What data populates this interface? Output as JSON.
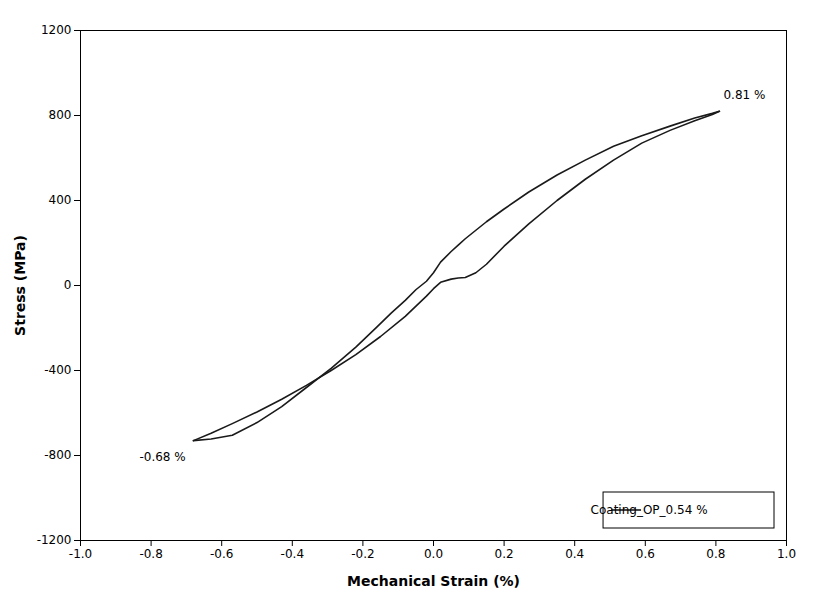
{
  "chart_data": {
    "type": "line",
    "xlabel": "Mechanical Strain (%)",
    "ylabel": "Stress (MPa)",
    "xlim": [
      -1.0,
      1.0
    ],
    "ylim": [
      -1200,
      1200
    ],
    "xticks": [
      {
        "value": -1.0,
        "label": "-1.0"
      },
      -0.8,
      -0.6,
      -0.4,
      -0.2,
      {
        "value": 0.0,
        "label": "0.0"
      },
      0.2,
      0.4,
      0.6,
      0.8,
      {
        "value": 1.0,
        "label": "1.0"
      }
    ],
    "yticks": [
      -1200,
      -800,
      -400,
      0,
      400,
      800,
      1200
    ],
    "grid": false,
    "legend": "lower right",
    "series": [
      {
        "name": "Coating_OP_0.54 %",
        "color": "#1a1a1a",
        "x": [
          -0.68,
          -0.63,
          -0.57,
          -0.5,
          -0.43,
          -0.36,
          -0.29,
          -0.22,
          -0.15,
          -0.08,
          -0.02,
          0.0,
          0.02,
          0.05,
          0.07,
          0.09,
          0.12,
          0.15,
          0.2,
          0.27,
          0.35,
          0.43,
          0.51,
          0.59,
          0.67,
          0.74,
          0.79,
          0.81
        ],
        "values": [
          -730,
          -695,
          -650,
          -595,
          -535,
          -470,
          -400,
          -325,
          -240,
          -145,
          -50,
          -15,
          15,
          30,
          35,
          38,
          60,
          100,
          185,
          290,
          400,
          500,
          590,
          670,
          730,
          775,
          805,
          820
        ]
      },
      {
        "color": "#1a1a1a",
        "x": [
          0.81,
          0.79,
          0.74,
          0.67,
          0.59,
          0.51,
          0.43,
          0.35,
          0.27,
          0.2,
          0.15,
          0.12,
          0.09,
          0.07,
          0.05,
          0.02,
          0.0,
          -0.02,
          -0.05,
          -0.08,
          -0.12,
          -0.16,
          -0.22,
          -0.29,
          -0.36,
          -0.43,
          -0.5,
          -0.57,
          -0.63,
          -0.68
        ],
        "values": [
          820,
          810,
          788,
          750,
          705,
          655,
          590,
          520,
          440,
          360,
          300,
          260,
          220,
          190,
          160,
          110,
          60,
          20,
          -20,
          -70,
          -130,
          -195,
          -290,
          -390,
          -480,
          -570,
          -645,
          -705,
          -722,
          -730
        ]
      }
    ],
    "annotations": [
      {
        "text": "0.81 %",
        "x": 0.81,
        "y": 820
      },
      {
        "text": "-0.68 %",
        "x": -0.68,
        "y": -730
      }
    ]
  }
}
